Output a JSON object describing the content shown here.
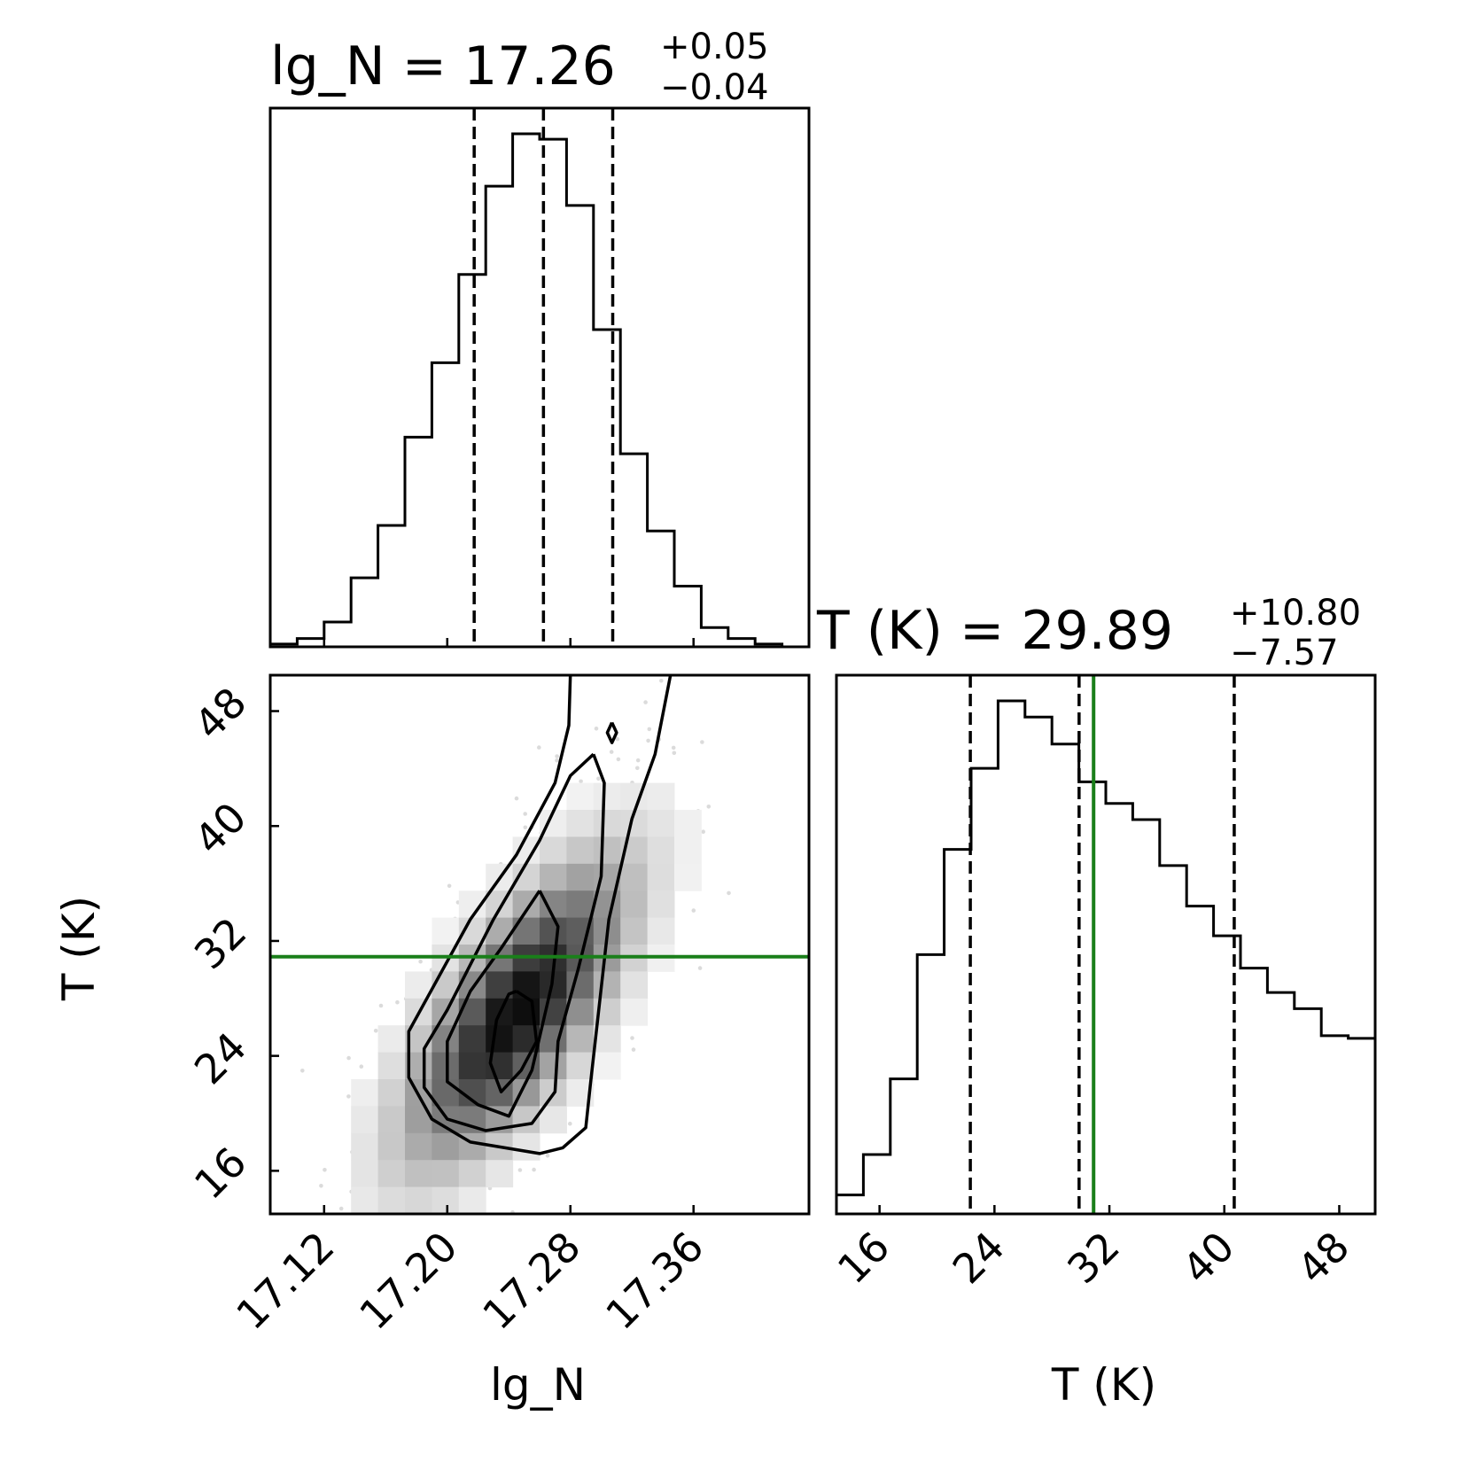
{
  "chart_data": [
    {
      "panel": "lg_N marginal",
      "type": "histogram",
      "title": {
        "param": "lg_N",
        "median": "17.26",
        "plus": "+0.05",
        "minus": "−0.04"
      },
      "xlim": [
        17.085,
        17.435
      ],
      "bin_edges": [
        17.085,
        17.1025,
        17.12,
        17.1375,
        17.155,
        17.1725,
        17.19,
        17.2075,
        17.225,
        17.2425,
        17.26,
        17.2775,
        17.295,
        17.3125,
        17.33,
        17.3475,
        17.365,
        17.3825,
        17.4,
        17.4175,
        17.435
      ],
      "counts": [
        0.5,
        1.5,
        4.5,
        12.5,
        22.0,
        38.0,
        51.5,
        67.5,
        83.5,
        93.0,
        92.0,
        80.0,
        57.5,
        35.0,
        21.0,
        11.0,
        3.5,
        1.5,
        0.5,
        0.0
      ],
      "quantile_lines": [
        17.2175,
        17.2625,
        17.3075
      ]
    },
    {
      "panel": "lg_N vs T (K) joint",
      "type": "scatter",
      "description_levels": "2D density with contours",
      "xlim": [
        17.085,
        17.435
      ],
      "ylim": [
        13.0,
        50.5
      ],
      "xticks": [
        "17.12",
        "17.20",
        "17.28",
        "17.36"
      ],
      "xtick_values": [
        17.12,
        17.2,
        17.28,
        17.36
      ],
      "yticks": [
        "16",
        "24",
        "32",
        "40",
        "48"
      ],
      "ytick_values": [
        16,
        24,
        32,
        40,
        48
      ],
      "xlabel": "lg_N",
      "ylabel": "T (K)",
      "truth_line": {
        "y": 30.9,
        "color": "#1a7f1a"
      },
      "density_peak": {
        "x": 17.24,
        "y": 26.0
      },
      "contours": [
        [
          [
            17.245,
            28.5
          ],
          [
            17.255,
            27.8
          ],
          [
            17.258,
            25.0
          ],
          [
            17.248,
            23.0
          ],
          [
            17.235,
            21.5
          ],
          [
            17.228,
            23.5
          ],
          [
            17.232,
            26.5
          ],
          [
            17.24,
            28.3
          ],
          [
            17.245,
            28.5
          ]
        ],
        [
          [
            17.26,
            35.5
          ],
          [
            17.272,
            33.0
          ],
          [
            17.268,
            29.0
          ],
          [
            17.255,
            23.0
          ],
          [
            17.24,
            19.8
          ],
          [
            17.22,
            20.6
          ],
          [
            17.2,
            22.2
          ],
          [
            17.2,
            25.0
          ],
          [
            17.215,
            28.5
          ],
          [
            17.235,
            31.5
          ],
          [
            17.26,
            35.5
          ]
        ],
        [
          [
            17.295,
            45.0
          ],
          [
            17.302,
            43.0
          ],
          [
            17.3,
            36.5
          ],
          [
            17.285,
            30.0
          ],
          [
            17.272,
            25.0
          ],
          [
            17.27,
            21.5
          ],
          [
            17.255,
            19.3
          ],
          [
            17.225,
            18.8
          ],
          [
            17.2,
            19.6
          ],
          [
            17.185,
            21.8
          ],
          [
            17.185,
            24.5
          ],
          [
            17.2,
            27.2
          ],
          [
            17.23,
            33.5
          ],
          [
            17.26,
            39.0
          ],
          [
            17.28,
            43.5
          ],
          [
            17.295,
            45.0
          ]
        ],
        [
          [
            17.28,
            50.5
          ],
          [
            17.279,
            47.0
          ],
          [
            17.27,
            43.0
          ],
          [
            17.245,
            38.0
          ],
          [
            17.215,
            33.5
          ],
          [
            17.175,
            25.7
          ],
          [
            17.175,
            22.5
          ],
          [
            17.19,
            19.6
          ],
          [
            17.215,
            18.0
          ],
          [
            17.26,
            17.2
          ],
          [
            17.275,
            17.6
          ],
          [
            17.29,
            19.0
          ],
          [
            17.293,
            22.0
          ],
          [
            17.305,
            33.5
          ],
          [
            17.32,
            40.5
          ],
          [
            17.335,
            45.0
          ],
          [
            17.345,
            50.5
          ]
        ],
        [
          [
            17.307,
            47.2
          ],
          [
            17.31,
            46.5
          ],
          [
            17.307,
            45.8
          ],
          [
            17.304,
            46.5
          ],
          [
            17.307,
            47.2
          ]
        ]
      ]
    },
    {
      "panel": "T (K) marginal",
      "type": "histogram",
      "title": {
        "param": "T (K)",
        "median": "29.89",
        "plus": "+10.80",
        "minus": "−7.57"
      },
      "xlim": [
        13.0,
        50.5
      ],
      "xticks": [
        "16",
        "24",
        "32",
        "40",
        "48"
      ],
      "xtick_values": [
        16,
        24,
        32,
        40,
        48
      ],
      "xlabel": "T (K)",
      "bin_edges": [
        13.0,
        14.875,
        16.75,
        18.625,
        20.5,
        22.375,
        24.25,
        26.125,
        28.0,
        29.875,
        31.75,
        33.625,
        35.5,
        37.375,
        39.25,
        41.125,
        43.0,
        44.875,
        46.75,
        48.625,
        50.5
      ],
      "counts": [
        3.5,
        11.0,
        25.0,
        48.0,
        67.5,
        82.5,
        95.0,
        92.0,
        87.0,
        80.0,
        76.0,
        73.0,
        64.5,
        57.0,
        51.5,
        45.5,
        41.0,
        38.0,
        33.0,
        32.5
      ],
      "quantile_lines": [
        22.32,
        29.89,
        40.69
      ],
      "truth_line": {
        "x": 30.9,
        "color": "#1a7f1a"
      }
    }
  ]
}
